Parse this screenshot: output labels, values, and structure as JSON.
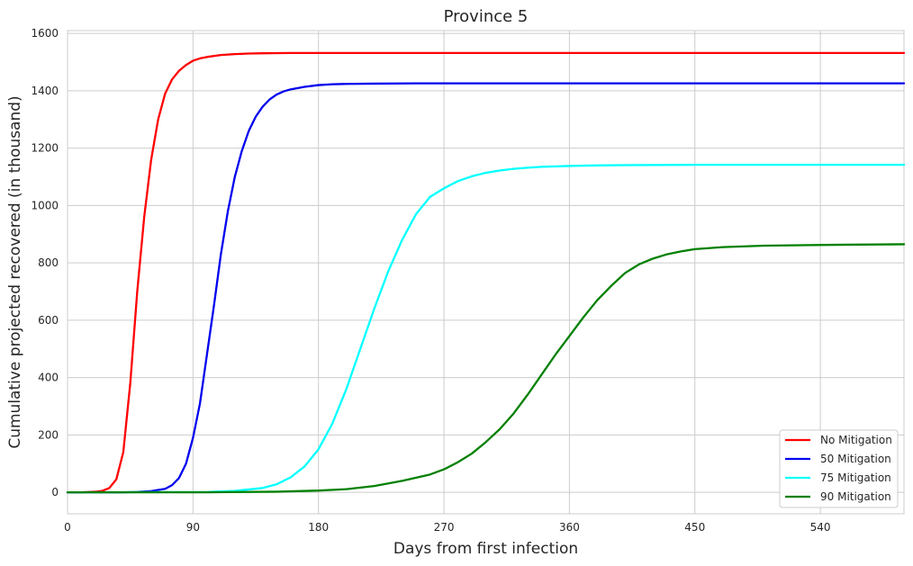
{
  "chart_data": {
    "type": "line",
    "title": "Province 5",
    "xlabel": "Days from first infection",
    "ylabel": "Cumulative projected recovered (in thousand)",
    "xlim": [
      0,
      600
    ],
    "ylim": [
      -75,
      1610
    ],
    "xticks": [
      0,
      90,
      180,
      270,
      360,
      450,
      540
    ],
    "yticks": [
      0,
      200,
      400,
      600,
      800,
      1000,
      1200,
      1400,
      1600
    ],
    "grid": true,
    "legend_position": "lower-right",
    "series": [
      {
        "name": "No Mitigation",
        "color": "#ff0000",
        "x": [
          0,
          10,
          20,
          25,
          30,
          35,
          40,
          45,
          50,
          55,
          60,
          65,
          70,
          75,
          80,
          85,
          90,
          95,
          100,
          110,
          120,
          130,
          140,
          160,
          200,
          300,
          400,
          500,
          600
        ],
        "y": [
          0,
          0,
          2,
          5,
          15,
          45,
          140,
          380,
          700,
          960,
          1160,
          1300,
          1390,
          1440,
          1470,
          1490,
          1505,
          1513,
          1518,
          1525,
          1528,
          1530,
          1531,
          1532,
          1532,
          1532,
          1532,
          1532,
          1532
        ]
      },
      {
        "name": "50 Mitigation",
        "color": "#0000ee",
        "x": [
          0,
          40,
          50,
          60,
          70,
          75,
          80,
          85,
          90,
          95,
          100,
          105,
          110,
          115,
          120,
          125,
          130,
          135,
          140,
          145,
          150,
          155,
          160,
          170,
          180,
          190,
          200,
          220,
          250,
          300,
          400,
          500,
          600
        ],
        "y": [
          0,
          0,
          1,
          4,
          12,
          25,
          50,
          100,
          190,
          310,
          480,
          650,
          830,
          980,
          1100,
          1190,
          1260,
          1310,
          1345,
          1370,
          1387,
          1398,
          1405,
          1414,
          1420,
          1423,
          1424,
          1425,
          1426,
          1426,
          1426,
          1426,
          1426
        ]
      },
      {
        "name": "75 Mitigation",
        "color": "#00ffff",
        "x": [
          0,
          100,
          120,
          140,
          150,
          160,
          170,
          180,
          190,
          200,
          210,
          220,
          230,
          240,
          250,
          260,
          270,
          280,
          290,
          300,
          310,
          320,
          330,
          340,
          360,
          380,
          400,
          450,
          500,
          600
        ],
        "y": [
          0,
          1,
          5,
          15,
          28,
          52,
          90,
          150,
          240,
          360,
          500,
          640,
          770,
          880,
          970,
          1030,
          1060,
          1085,
          1102,
          1114,
          1122,
          1128,
          1132,
          1135,
          1138,
          1140,
          1141,
          1142,
          1142,
          1142
        ]
      },
      {
        "name": "90 Mitigation",
        "color": "#008000",
        "x": [
          0,
          100,
          150,
          180,
          200,
          220,
          240,
          260,
          270,
          280,
          290,
          300,
          310,
          320,
          330,
          340,
          350,
          360,
          370,
          380,
          390,
          400,
          410,
          420,
          430,
          440,
          450,
          470,
          500,
          550,
          600
        ],
        "y": [
          0,
          0,
          2,
          6,
          11,
          22,
          40,
          62,
          80,
          105,
          135,
          175,
          220,
          275,
          340,
          410,
          480,
          545,
          610,
          670,
          720,
          765,
          795,
          815,
          830,
          840,
          848,
          855,
          860,
          863,
          865
        ]
      }
    ]
  }
}
